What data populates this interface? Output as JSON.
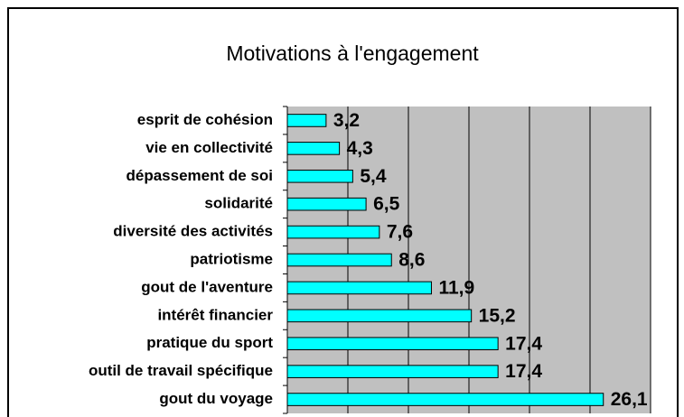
{
  "chart_data": {
    "type": "hbar",
    "title": "Motivations à l'engagement",
    "categories": [
      "esprit de cohésion",
      "vie en collectivité",
      "dépassement de soi",
      "solidarité",
      "diversité des activités",
      "patriotisme",
      "gout de l'aventure",
      "intérêt financier",
      "pratique du sport",
      "outil de travail spécifique",
      "gout du voyage"
    ],
    "values": [
      3.2,
      4.3,
      5.4,
      6.5,
      7.6,
      8.6,
      11.9,
      15.2,
      17.4,
      17.4,
      26.1
    ],
    "value_labels": [
      "3,2",
      "4,3",
      "5,4",
      "6,5",
      "7,6",
      "8,6",
      "11,9",
      "15,2",
      "17,4",
      "17,4",
      "26,1"
    ],
    "color": "#00ffff",
    "xlim": [
      0,
      30
    ],
    "xticks": [
      0,
      5,
      10,
      15,
      20,
      25,
      30
    ],
    "grid": true
  }
}
